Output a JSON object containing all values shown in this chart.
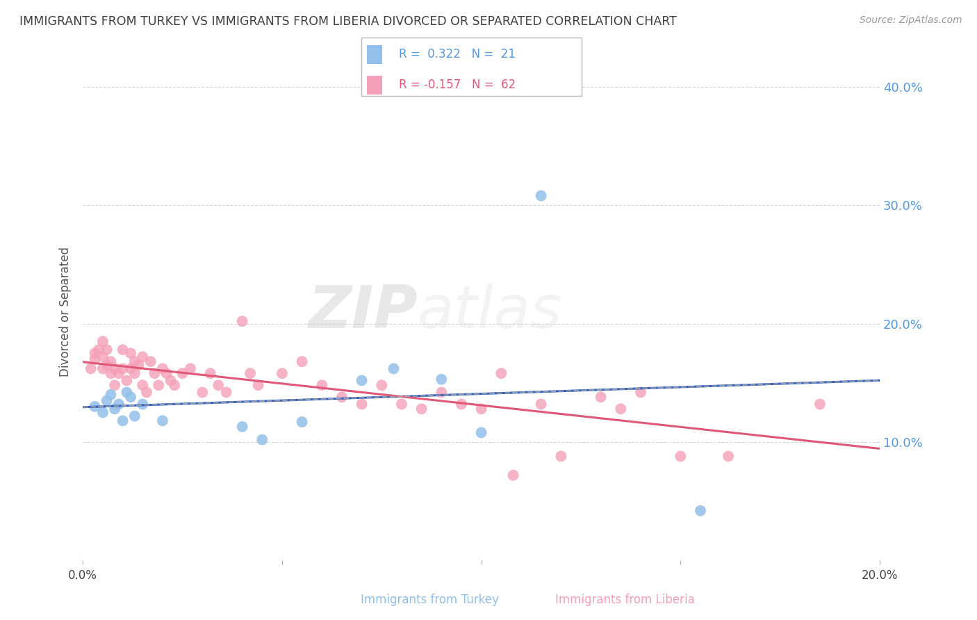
{
  "title": "IMMIGRANTS FROM TURKEY VS IMMIGRANTS FROM LIBERIA DIVORCED OR SEPARATED CORRELATION CHART",
  "source": "Source: ZipAtlas.com",
  "ylabel": "Divorced or Separated",
  "xlim": [
    0.0,
    0.2
  ],
  "ylim": [
    0.0,
    0.42
  ],
  "yticks": [
    0.1,
    0.2,
    0.3,
    0.4
  ],
  "ytick_labels": [
    "10.0%",
    "20.0%",
    "30.0%",
    "40.0%"
  ],
  "xticks": [
    0.0,
    0.05,
    0.1,
    0.15,
    0.2
  ],
  "legend_turkey": "Immigrants from Turkey",
  "legend_liberia": "Immigrants from Liberia",
  "turkey_R": 0.322,
  "turkey_N": 21,
  "liberia_R": -0.157,
  "liberia_N": 62,
  "turkey_color": "#92c0e8",
  "liberia_color": "#f4a0b8",
  "turkey_line_color": "#3060c0",
  "liberia_line_color": "#e05878",
  "background_color": "#ffffff",
  "grid_color": "#cccccc",
  "title_color": "#404040",
  "watermark_zip": "ZIP",
  "watermark_atlas": "atlas",
  "turkey_x": [
    0.003,
    0.005,
    0.006,
    0.007,
    0.008,
    0.009,
    0.01,
    0.011,
    0.012,
    0.013,
    0.015,
    0.02,
    0.04,
    0.045,
    0.055,
    0.07,
    0.078,
    0.09,
    0.1,
    0.115,
    0.155
  ],
  "turkey_y": [
    0.13,
    0.125,
    0.135,
    0.14,
    0.128,
    0.132,
    0.118,
    0.142,
    0.138,
    0.122,
    0.132,
    0.118,
    0.113,
    0.102,
    0.117,
    0.152,
    0.162,
    0.153,
    0.108,
    0.308,
    0.042
  ],
  "liberia_x": [
    0.002,
    0.003,
    0.003,
    0.004,
    0.005,
    0.005,
    0.005,
    0.006,
    0.006,
    0.007,
    0.007,
    0.008,
    0.008,
    0.009,
    0.01,
    0.01,
    0.011,
    0.012,
    0.012,
    0.013,
    0.013,
    0.014,
    0.015,
    0.015,
    0.016,
    0.017,
    0.018,
    0.019,
    0.02,
    0.021,
    0.022,
    0.023,
    0.025,
    0.027,
    0.03,
    0.032,
    0.034,
    0.036,
    0.04,
    0.042,
    0.044,
    0.05,
    0.055,
    0.06,
    0.065,
    0.07,
    0.075,
    0.08,
    0.085,
    0.09,
    0.095,
    0.1,
    0.105,
    0.108,
    0.115,
    0.12,
    0.13,
    0.135,
    0.14,
    0.15,
    0.162,
    0.185
  ],
  "liberia_y": [
    0.162,
    0.17,
    0.175,
    0.178,
    0.185,
    0.162,
    0.172,
    0.178,
    0.165,
    0.158,
    0.168,
    0.148,
    0.162,
    0.158,
    0.162,
    0.178,
    0.152,
    0.162,
    0.175,
    0.158,
    0.168,
    0.165,
    0.148,
    0.172,
    0.142,
    0.168,
    0.158,
    0.148,
    0.162,
    0.158,
    0.152,
    0.148,
    0.158,
    0.162,
    0.142,
    0.158,
    0.148,
    0.142,
    0.202,
    0.158,
    0.148,
    0.158,
    0.168,
    0.148,
    0.138,
    0.132,
    0.148,
    0.132,
    0.128,
    0.142,
    0.132,
    0.128,
    0.158,
    0.072,
    0.132,
    0.088,
    0.138,
    0.128,
    0.142,
    0.088,
    0.088,
    0.132
  ]
}
